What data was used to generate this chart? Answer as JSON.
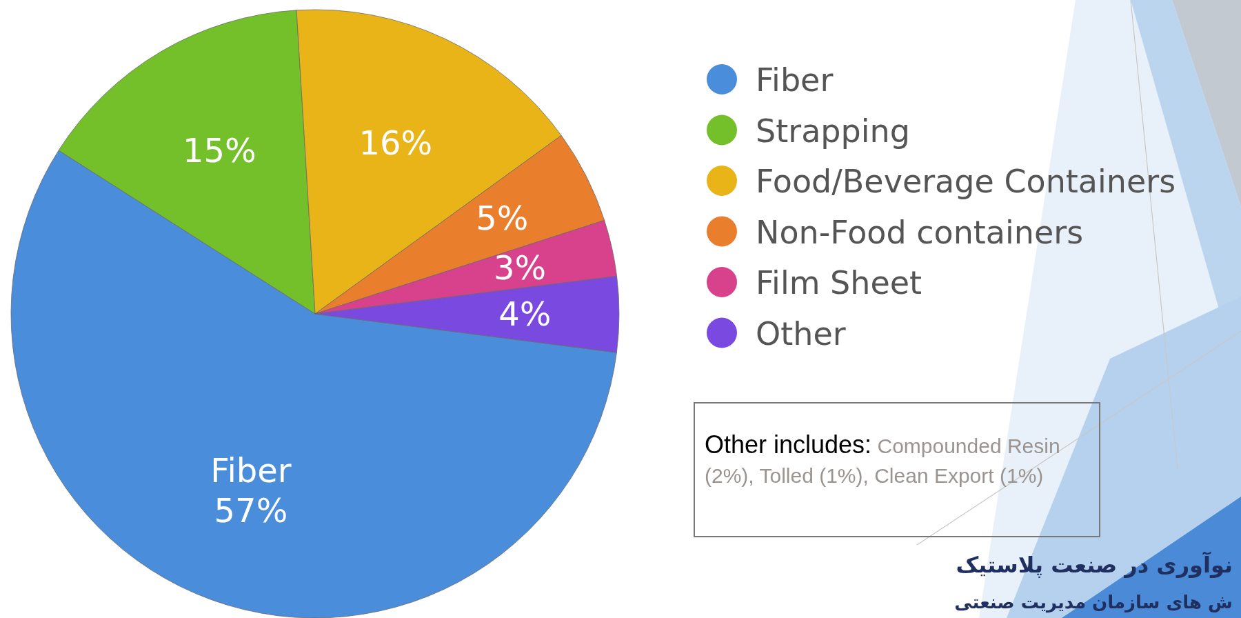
{
  "chart_data": {
    "type": "pie",
    "categories": [
      "Fiber",
      "Strapping",
      "Food/Beverage Containers",
      "Non-Food containers",
      "Film Sheet",
      "Other"
    ],
    "values": [
      57,
      15,
      16,
      5,
      3,
      4
    ],
    "colors": [
      "#4a8ddb",
      "#73c02b",
      "#e8b418",
      "#e97f2c",
      "#d8418c",
      "#7a4ae0"
    ],
    "value_labels": [
      "Fiber\n57%",
      "15%",
      "16%",
      "5%",
      "3%",
      "4%"
    ],
    "legend": "right",
    "annotations": [
      "Other includes:",
      "Compounded Resin (2%), Tolled (1%), Clean Export (1%)",
      "نوآوری در صنعت پلاستیک",
      "ش های سازمان مدیریت صنعتی"
    ]
  }
}
